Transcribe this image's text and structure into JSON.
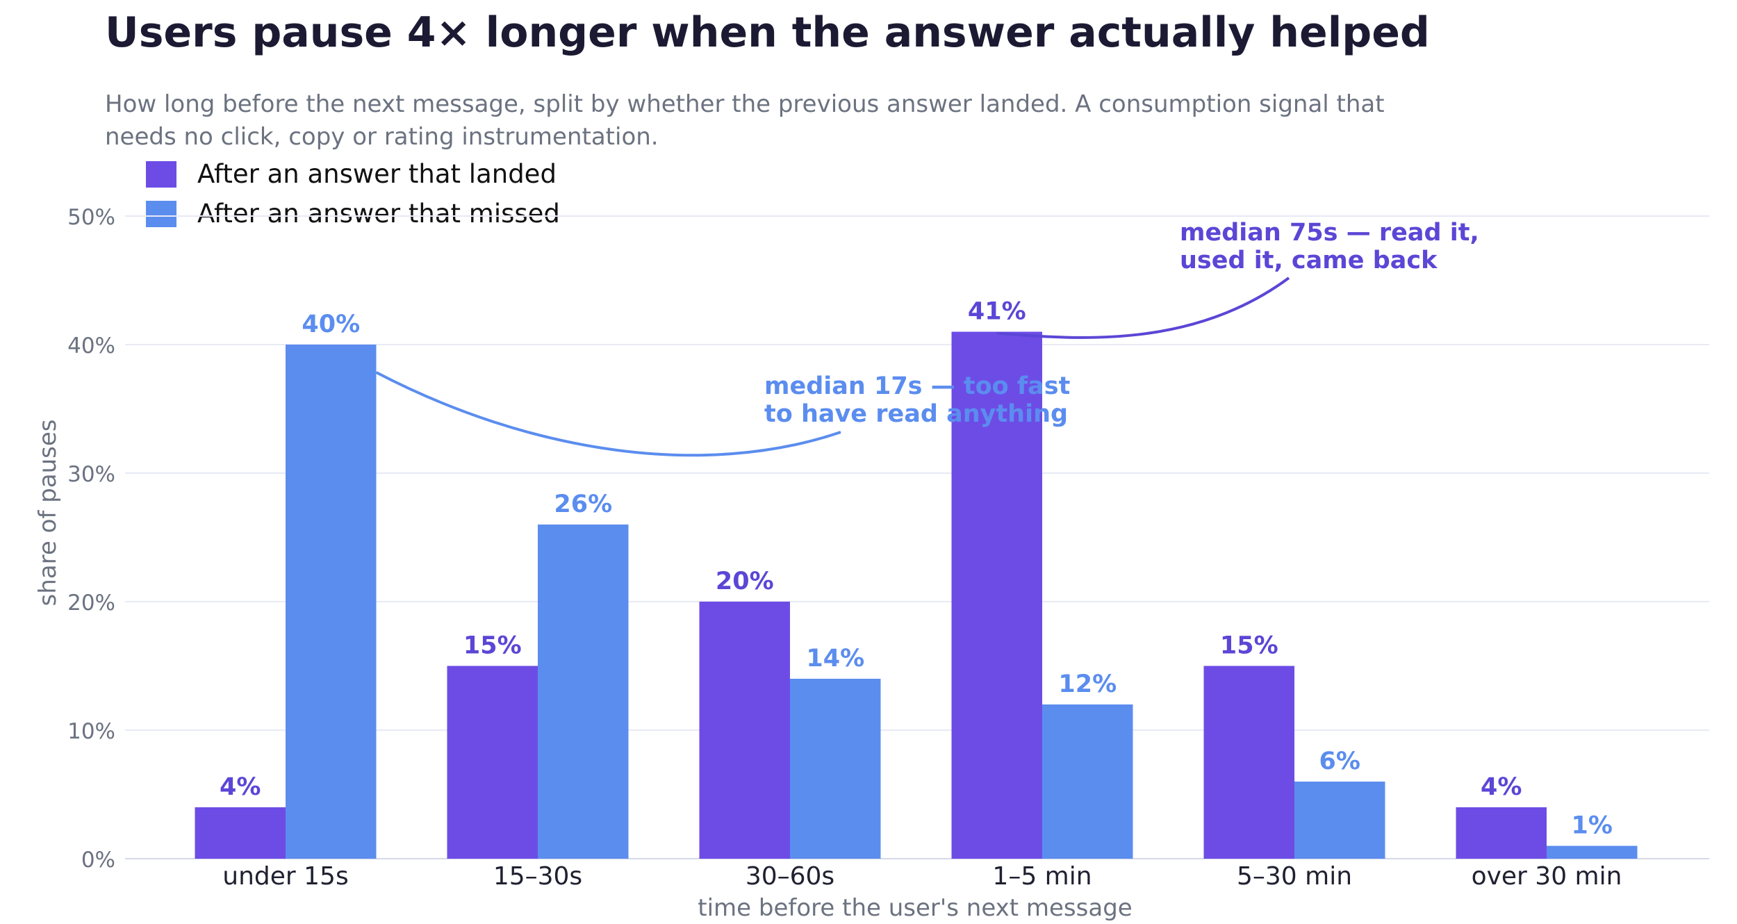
{
  "chart_data": {
    "type": "bar",
    "title": "Users pause 4× longer when the answer actually helped",
    "subtitle": "How long before the next message, split by whether the previous answer landed. A consumption signal that needs no click, copy or rating instrumentation.",
    "xlabel": "time before the user's next message",
    "ylabel": "share of pauses",
    "categories": [
      "under 15s",
      "15–30s",
      "30–60s",
      "1–5 min",
      "5–30 min",
      "over 30 min"
    ],
    "series": [
      {
        "name": "After an answer that landed",
        "color": "#6d4ce6",
        "values": [
          4,
          15,
          20,
          41,
          15,
          4
        ]
      },
      {
        "name": "After an answer that missed",
        "color": "#5b8def",
        "values": [
          40,
          26,
          14,
          12,
          6,
          1
        ]
      }
    ],
    "ylim": [
      0,
      50
    ],
    "yticks": [
      0,
      10,
      20,
      30,
      40,
      50
    ],
    "ytick_labels": [
      "0%",
      "10%",
      "20%",
      "30%",
      "40%",
      "50%"
    ],
    "value_suffix": "%",
    "grid": true,
    "legend_position": "top-left",
    "annotations": [
      {
        "series": 0,
        "category": "1–5 min",
        "color": "#5b46d6",
        "lines": [
          "median 75s — read it,",
          "used it, came back"
        ]
      },
      {
        "series": 1,
        "category": "under 15s",
        "color": "#5b8def",
        "lines": [
          "median 17s — too fast",
          "to have read anything"
        ]
      }
    ]
  }
}
